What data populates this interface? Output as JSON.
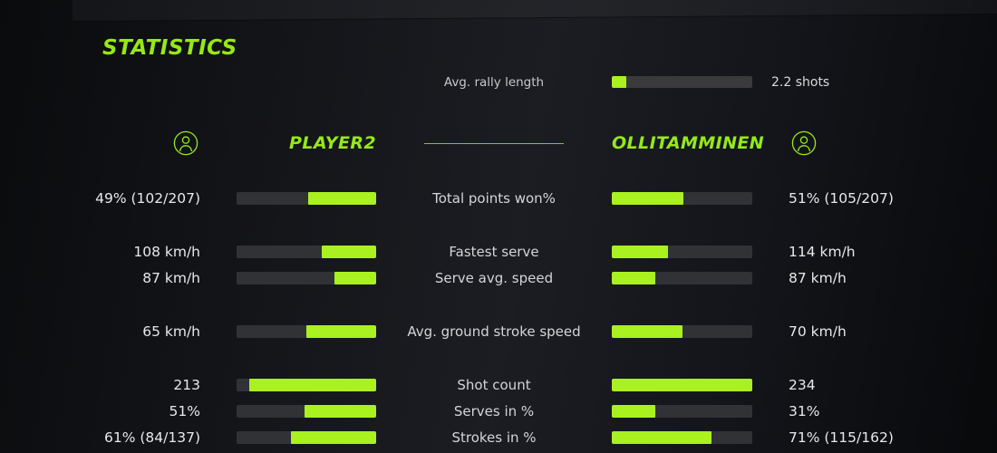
{
  "title": "STATISTICS",
  "colors": {
    "accent_text": "#96e915",
    "accent_bar": "#a9f11f",
    "bar_track": "#313236",
    "background": "#15171b"
  },
  "rally": {
    "label": "Avg. rally length",
    "value": "2.2 shots",
    "fill_pct": 10
  },
  "players": {
    "left": {
      "name": "PLAYER2",
      "icon": "person-icon"
    },
    "right": {
      "name": "OLLITAMMINEN",
      "icon": "person-icon"
    }
  },
  "stats": [
    {
      "label": "Total points won%",
      "left_value": "49% (102/207)",
      "right_value": "51% (105/207)",
      "left_fill_pct": 49,
      "right_fill_pct": 51
    },
    {
      "label": "Fastest serve",
      "left_value": "108 km/h",
      "right_value": "114 km/h",
      "left_fill_pct": 39,
      "right_fill_pct": 40
    },
    {
      "label": "Serve avg. speed",
      "left_value": "87 km/h",
      "right_value": "87 km/h",
      "left_fill_pct": 30,
      "right_fill_pct": 31
    },
    {
      "label": "Avg. ground stroke speed",
      "left_value": "65 km/h",
      "right_value": "70 km/h",
      "left_fill_pct": 50,
      "right_fill_pct": 50
    },
    {
      "label": "Shot count",
      "left_value": "213",
      "right_value": "234",
      "left_fill_pct": 91,
      "right_fill_pct": 100
    },
    {
      "label": "Serves in %",
      "left_value": "51%",
      "right_value": "31%",
      "left_fill_pct": 51,
      "right_fill_pct": 31
    },
    {
      "label": "Strokes in %",
      "left_value": "61% (84/137)",
      "right_value": "71% (115/162)",
      "left_fill_pct": 61,
      "right_fill_pct": 71
    }
  ],
  "chart_data": {
    "type": "bar",
    "title": "STATISTICS",
    "categories": [
      "Avg. rally length",
      "Total points won%",
      "Fastest serve",
      "Serve avg. speed",
      "Avg. ground stroke speed",
      "Shot count",
      "Serves in %",
      "Strokes in %"
    ],
    "series": [
      {
        "name": "PLAYER2",
        "values": [
          null,
          "49% (102/207)",
          "108 km/h",
          "87 km/h",
          "65 km/h",
          "213",
          "51%",
          "61% (84/137)"
        ]
      },
      {
        "name": "OLLITAMMINEN",
        "values": [
          "2.2 shots",
          "51% (105/207)",
          "114 km/h",
          "87 km/h",
          "70 km/h",
          "234",
          "31%",
          "71% (115/162)"
        ]
      }
    ],
    "layout": "mirrored horizontal bars, labels centered, values on outer edges"
  }
}
